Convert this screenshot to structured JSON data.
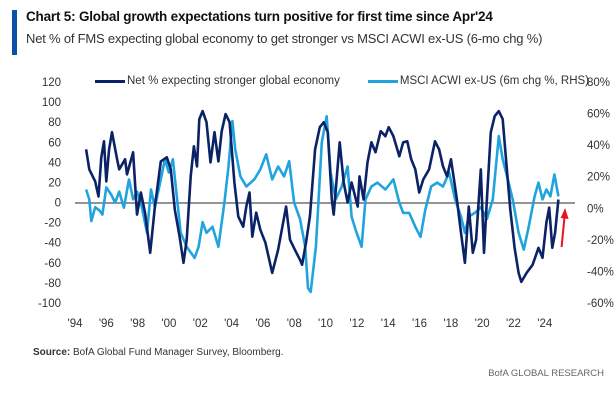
{
  "header": {
    "title": "Chart 5: Global growth expectations turn positive for first time since Apr'24",
    "subtitle": "Net % of FMS expecting global economy to get stronger vs MSCI ACWI ex-US (6-mo chg %)"
  },
  "footer": {
    "source_label": "Source:",
    "source_text": " BofA Global Fund Manager Survey, Bloomberg.",
    "brand": "BofA GLOBAL RESEARCH"
  },
  "colors": {
    "dark": "#0b2366",
    "light": "#21a4de",
    "accent": "#0a4fa8",
    "arrow": "#e8141b",
    "zero": "#555555"
  },
  "chart_data": {
    "type": "line",
    "title": "Chart 5: Global growth expectations turn positive for first time since Apr'24",
    "xlabel": "",
    "ylabel": "",
    "y2label": "",
    "xlim": [
      1994,
      2026
    ],
    "ylim": [
      -100,
      120
    ],
    "y2lim": [
      -60,
      80
    ],
    "x_ticks": [
      "'94",
      "'96",
      "'98",
      "'00",
      "'02",
      "'04",
      "'06",
      "'08",
      "'10",
      "'12",
      "'14",
      "'16",
      "'18",
      "'20",
      "'22",
      "'24"
    ],
    "x_tick_years": [
      1994,
      1996,
      1998,
      2000,
      2002,
      2004,
      2006,
      2008,
      2010,
      2012,
      2014,
      2016,
      2018,
      2020,
      2022,
      2024
    ],
    "y_ticks": [
      "120",
      "100",
      "80",
      "60",
      "40",
      "20",
      "0",
      "-20",
      "-40",
      "-60",
      "-80",
      "-100"
    ],
    "y_tick_values": [
      120,
      100,
      80,
      60,
      40,
      20,
      0,
      -20,
      -40,
      -60,
      -80,
      -100
    ],
    "y2_ticks": [
      "80%",
      "60%",
      "40%",
      "20%",
      "0%",
      "-20%",
      "-40%",
      "-60%"
    ],
    "y2_tick_values": [
      80,
      60,
      40,
      20,
      0,
      -20,
      -40,
      -60
    ],
    "legend_position": "top",
    "grid": false,
    "annotations": [
      {
        "type": "arrow",
        "direction": "up",
        "year": 2025.2
      }
    ],
    "series": [
      {
        "name": "Net % expecting stronger global economy",
        "axis": "left",
        "x": [
          1994.71,
          1994.91,
          1995.29,
          1995.5,
          1995.68,
          1995.85,
          1996.0,
          1996.18,
          1996.36,
          1996.69,
          1996.82,
          1997.2,
          1997.32,
          1997.71,
          1997.96,
          1998.21,
          1998.47,
          1998.8,
          1999.1,
          1999.48,
          1999.86,
          2000.12,
          2000.37,
          2000.68,
          2000.93,
          2001.13,
          2001.39,
          2001.59,
          2001.79,
          2001.94,
          2002.15,
          2002.4,
          2002.65,
          2002.91,
          2003.16,
          2003.37,
          2003.62,
          2003.87,
          2004.18,
          2004.43,
          2004.74,
          2004.94,
          2005.14,
          2005.32,
          2005.57,
          2005.83,
          2006.16,
          2006.59,
          2006.97,
          2007.48,
          2007.73,
          2008.04,
          2008.37,
          2008.5,
          2008.75,
          2009.0,
          2009.33,
          2009.63,
          2009.89,
          2010.14,
          2010.4,
          2010.52,
          2010.9,
          2011.16,
          2011.41,
          2011.66,
          2012.05,
          2012.17,
          2012.43,
          2012.68,
          2012.93,
          2013.19,
          2013.52,
          2013.82,
          2014.03,
          2014.33,
          2014.71,
          2014.96,
          2015.22,
          2015.47,
          2015.73,
          2015.98,
          2016.24,
          2016.61,
          2016.99,
          2017.25,
          2017.5,
          2017.76,
          2018.01,
          2018.39,
          2018.65,
          2018.9,
          2019.15,
          2019.4,
          2019.61,
          2019.91,
          2020.12,
          2020.3,
          2020.55,
          2020.8,
          2021.06,
          2021.31,
          2021.56,
          2021.8,
          2022.07,
          2022.33,
          2022.5,
          2022.84,
          2023.22,
          2023.6,
          2023.85,
          2024.1,
          2024.28,
          2024.48,
          2024.66,
          2024.87
        ],
        "values": [
          53,
          33,
          21,
          6,
          45,
          61,
          21,
          53,
          70,
          43,
          33,
          43,
          28,
          50,
          -12,
          10,
          -10,
          -50,
          -4,
          41,
          45,
          33,
          -7,
          -34,
          -60,
          -37,
          26,
          56,
          36,
          83,
          91,
          80,
          40,
          70,
          41,
          71,
          88,
          80,
          20,
          -14,
          -24,
          -4,
          10,
          -34,
          -10,
          -27,
          -40,
          -70,
          -47,
          -4,
          -37,
          -47,
          -57,
          -62,
          -40,
          -14,
          53,
          75,
          80,
          70,
          3,
          -12,
          60,
          20,
          0,
          20,
          -4,
          26,
          3,
          40,
          60,
          50,
          71,
          66,
          75,
          66,
          46,
          60,
          61,
          43,
          33,
          10,
          23,
          33,
          61,
          53,
          36,
          26,
          43,
          3,
          -30,
          -60,
          -4,
          -50,
          -37,
          33,
          -50,
          3,
          70,
          86,
          91,
          83,
          36,
          -7,
          -45,
          -70,
          -79,
          -70,
          -62,
          -45,
          -55,
          -20,
          -5,
          -45,
          -30,
          3
        ]
      },
      {
        "name": "MSCI ACWI ex-US (6m chg %, RHS)",
        "axis": "right",
        "x": [
          1994.71,
          1994.91,
          1995.04,
          1995.29,
          1995.55,
          1995.75,
          1996.0,
          1996.31,
          1996.56,
          1996.82,
          1997.12,
          1997.45,
          1997.71,
          1997.96,
          1998.21,
          1998.6,
          1998.85,
          1999.1,
          1999.48,
          1999.74,
          1999.99,
          2000.25,
          2000.5,
          2000.75,
          2001.13,
          2001.64,
          2001.89,
          2002.15,
          2002.4,
          2002.78,
          2003.16,
          2003.54,
          2003.8,
          2004.05,
          2004.23,
          2004.56,
          2004.94,
          2005.45,
          2005.83,
          2006.21,
          2006.59,
          2006.97,
          2007.35,
          2007.68,
          2007.99,
          2008.37,
          2008.7,
          2008.88,
          2009.05,
          2009.38,
          2009.76,
          2010.07,
          2010.32,
          2010.65,
          2011.03,
          2011.41,
          2011.66,
          2011.92,
          2012.3,
          2012.55,
          2012.93,
          2013.31,
          2013.82,
          2014.33,
          2014.71,
          2014.96,
          2015.34,
          2015.73,
          2016.06,
          2016.36,
          2016.74,
          2017.12,
          2017.5,
          2017.89,
          2018.27,
          2018.65,
          2018.9,
          2019.15,
          2019.53,
          2019.91,
          2020.3,
          2020.68,
          2021.06,
          2021.31,
          2021.69,
          2021.95,
          2022.33,
          2022.66,
          2022.97,
          2023.35,
          2023.6,
          2023.85,
          2024.1,
          2024.36,
          2024.61,
          2024.87
        ],
        "values": [
          11.9,
          5.6,
          -8.1,
          0.6,
          -1.3,
          -4,
          13.2,
          8.7,
          3.6,
          10.6,
          0.4,
          18.3,
          5.6,
          10.6,
          3.6,
          -15.5,
          11.9,
          0.6,
          18.3,
          31,
          22.7,
          31,
          7.5,
          -15.5,
          -24.4,
          -31.4,
          -24.4,
          -8.8,
          -15.5,
          -11.7,
          -24.4,
          3.6,
          26.5,
          55.2,
          37.4,
          20.2,
          13.8,
          18.3,
          24.6,
          34.2,
          18.3,
          26.5,
          20.2,
          29.8,
          3.6,
          -6.8,
          -24.4,
          -50.5,
          -53,
          -24.4,
          41.8,
          58.3,
          22.7,
          5.6,
          13.8,
          26.5,
          -5.3,
          -13.6,
          -24.4,
          5.6,
          13.8,
          16.3,
          11.9,
          18.3,
          3.6,
          -2.9,
          -2.9,
          -11.7,
          -18.1,
          -1.3,
          13.8,
          16.3,
          13.8,
          22.7,
          5.6,
          -5.3,
          -15.5,
          -5.3,
          -2.9,
          0.6,
          -6.8,
          5.6,
          45.7,
          31,
          16.3,
          5.6,
          -15.5,
          -26.2,
          -11.7,
          7.5,
          16.3,
          5.6,
          11.9,
          7.5,
          21.4,
          7.5
        ]
      }
    ]
  }
}
